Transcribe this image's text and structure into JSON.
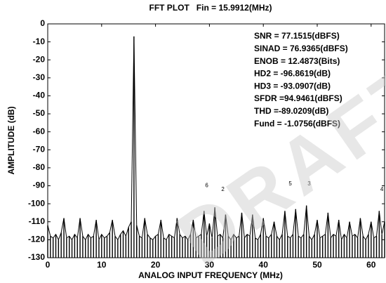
{
  "chart_data": {
    "type": "stem",
    "title": "FFT PLOT   Fin = 15.9912(MHz)",
    "x_label": "ANALOG INPUT FREQUENCY (MHz)",
    "y_label": "AMPLITUDE (dB)",
    "color": "#000000",
    "xlim": [
      0,
      62.5
    ],
    "ylim": [
      -130,
      0
    ],
    "xticks": [
      0,
      10,
      20,
      30,
      40,
      50,
      60
    ],
    "yticks": [
      0,
      -10,
      -20,
      -30,
      -40,
      -50,
      -60,
      -70,
      -80,
      -90,
      -100,
      -110,
      -120,
      -130
    ],
    "x": [
      0,
      0.5,
      1,
      1.5,
      2,
      2.5,
      3,
      3.5,
      4,
      4.5,
      5,
      5.5,
      6,
      6.5,
      7,
      7.5,
      8,
      8.5,
      9,
      9.5,
      10,
      10.5,
      11,
      11.5,
      12,
      12.5,
      13,
      13.5,
      14,
      14.5,
      15,
      15.5,
      16,
      16.5,
      17,
      17.5,
      18,
      18.5,
      19,
      19.5,
      20,
      20.5,
      21,
      21.5,
      22,
      22.5,
      23,
      23.5,
      24,
      24.5,
      25,
      25.5,
      26,
      26.5,
      27,
      27.5,
      28,
      28.5,
      29,
      29.5,
      30,
      30.5,
      31,
      31.5,
      32,
      32.5,
      33,
      33.5,
      34,
      34.5,
      35,
      35.5,
      36,
      36.5,
      37,
      37.5,
      38,
      38.5,
      39,
      39.5,
      40,
      40.5,
      41,
      41.5,
      42,
      42.5,
      43,
      43.5,
      44,
      44.5,
      45,
      45.5,
      46,
      46.5,
      47,
      47.5,
      48,
      48.5,
      49,
      49.5,
      50,
      50.5,
      51,
      51.5,
      52,
      52.5,
      53,
      53.5,
      54,
      54.5,
      55,
      55.5,
      56,
      56.5,
      57,
      57.5,
      58,
      58.5,
      59,
      59.5,
      60,
      60.5,
      61,
      61.5,
      62,
      62.5
    ],
    "values": [
      -112,
      -118,
      -119,
      -117,
      -120,
      -116,
      -108,
      -119,
      -118,
      -120,
      -117,
      -119,
      -108,
      -118,
      -120,
      -117,
      -119,
      -118,
      -109,
      -120,
      -117,
      -119,
      -118,
      -116,
      -109,
      -118,
      -120,
      -117,
      -115,
      -118,
      -113,
      -110,
      -7,
      -112,
      -118,
      -119,
      -108,
      -117,
      -119,
      -120,
      -118,
      -117,
      -109,
      -119,
      -120,
      -117,
      -118,
      -119,
      -108,
      -117,
      -119,
      -118,
      -120,
      -117,
      -109,
      -119,
      -118,
      -117,
      -104,
      -118,
      -111,
      -119,
      -102,
      -118,
      -117,
      -119,
      -106,
      -118,
      -120,
      -117,
      -119,
      -118,
      -105,
      -119,
      -117,
      -118,
      -106,
      -119,
      -120,
      -117,
      -108,
      -118,
      -119,
      -117,
      -110,
      -118,
      -120,
      -117,
      -104,
      -118,
      -119,
      -117,
      -103,
      -118,
      -119,
      -117,
      -101,
      -118,
      -120,
      -117,
      -109,
      -119,
      -118,
      -117,
      -105,
      -119,
      -117,
      -118,
      -109,
      -120,
      -117,
      -119,
      -110,
      -118,
      -117,
      -119,
      -108,
      -118,
      -120,
      -117,
      -110,
      -119,
      -118,
      -104,
      -117,
      -110
    ],
    "harmonic_labels": [
      {
        "label": "6",
        "x": 29.5,
        "y": -90
      },
      {
        "label": "2",
        "x": 32.5,
        "y": -92
      },
      {
        "label": "5",
        "x": 45,
        "y": -89
      },
      {
        "label": "3",
        "x": 48.5,
        "y": -89
      },
      {
        "label": "4",
        "x": 62,
        "y": -92
      }
    ],
    "metrics": [
      "SNR = 77.1515(dBFS)",
      "SINAD = 76.9365(dBFS)",
      "ENOB = 12.4873(Bits)",
      "HD2 = -96.8619(dB)",
      "HD3 = -93.0907(dB)",
      "SFDR =94.9461(dBFS)",
      "THD =-89.0209(dB)",
      "Fund = -1.0756(dBFS)"
    ],
    "watermark": "DRAFT"
  }
}
